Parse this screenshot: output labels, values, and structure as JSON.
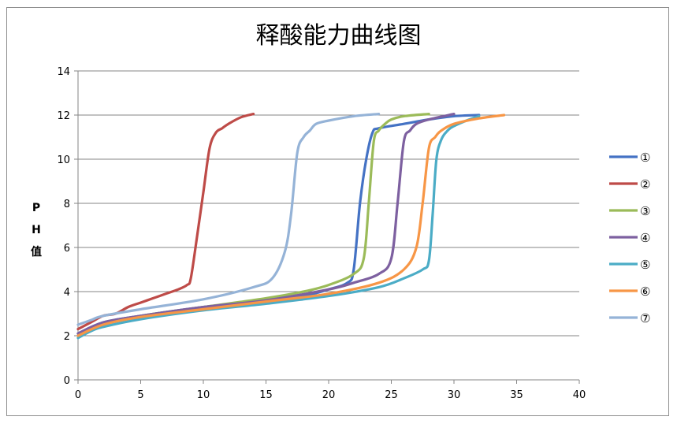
{
  "chart_data": {
    "type": "line",
    "title": "释酸能力曲线图",
    "xlabel": "",
    "ylabel": [
      "P",
      "H",
      "值"
    ],
    "xlim": [
      0,
      40
    ],
    "ylim": [
      0,
      14
    ],
    "xticks": [
      0,
      5,
      10,
      15,
      20,
      25,
      30,
      35,
      40
    ],
    "yticks": [
      0,
      2,
      4,
      6,
      8,
      10,
      12,
      14
    ],
    "grid": "horizontal",
    "legend": "right",
    "series": [
      {
        "name": "①",
        "color": "#4472c4",
        "x": [
          0,
          2,
          5,
          10,
          15,
          18,
          20,
          21.5,
          22,
          22.5,
          23,
          23.5,
          24,
          26,
          28,
          30,
          32
        ],
        "y": [
          2.1,
          2.6,
          2.9,
          3.3,
          3.6,
          3.8,
          4.1,
          4.4,
          5.0,
          8.0,
          10.0,
          11.2,
          11.4,
          11.6,
          11.8,
          11.95,
          12.0
        ]
      },
      {
        "name": "②",
        "color": "#be4b48",
        "x": [
          0,
          1,
          2,
          3,
          4,
          5,
          6,
          7,
          8,
          8.7,
          9,
          9.5,
          10,
          10.5,
          11,
          11.5,
          12,
          13,
          14
        ],
        "y": [
          2.3,
          2.6,
          2.9,
          3.0,
          3.3,
          3.5,
          3.7,
          3.9,
          4.1,
          4.3,
          4.6,
          6.5,
          8.5,
          10.5,
          11.2,
          11.4,
          11.6,
          11.9,
          12.05
        ]
      },
      {
        "name": "③",
        "color": "#9bbb59",
        "x": [
          0,
          2,
          5,
          10,
          15,
          18,
          20,
          22,
          22.8,
          23.2,
          23.6,
          24,
          24.5,
          25,
          26,
          28
        ],
        "y": [
          2.0,
          2.5,
          2.9,
          3.3,
          3.7,
          4.0,
          4.3,
          4.8,
          5.5,
          8.0,
          10.8,
          11.3,
          11.6,
          11.8,
          11.95,
          12.05
        ]
      },
      {
        "name": "④",
        "color": "#7d60a0",
        "x": [
          0,
          2,
          5,
          10,
          15,
          20,
          22,
          24,
          25,
          25.5,
          26,
          26.5,
          27,
          28,
          30
        ],
        "y": [
          2.1,
          2.6,
          2.9,
          3.3,
          3.6,
          4.1,
          4.4,
          4.8,
          5.5,
          8.0,
          10.8,
          11.3,
          11.6,
          11.8,
          12.05
        ]
      },
      {
        "name": "⑤",
        "color": "#4bacc6",
        "x": [
          0,
          1,
          2,
          5,
          10,
          15,
          20,
          24,
          26,
          27.5,
          28,
          28.3,
          28.6,
          29,
          29.5,
          30,
          31,
          32
        ],
        "y": [
          1.9,
          2.2,
          2.4,
          2.75,
          3.15,
          3.45,
          3.8,
          4.2,
          4.6,
          5.0,
          5.4,
          7.5,
          10.0,
          10.9,
          11.3,
          11.5,
          11.75,
          11.95
        ]
      },
      {
        "name": "⑥",
        "color": "#f79646",
        "x": [
          0,
          2,
          5,
          10,
          15,
          20,
          24,
          26,
          27,
          27.5,
          28,
          28.5,
          29,
          30,
          32,
          34
        ],
        "y": [
          2.0,
          2.5,
          2.85,
          3.2,
          3.55,
          3.9,
          4.4,
          5.0,
          6.0,
          8.0,
          10.5,
          11.0,
          11.3,
          11.6,
          11.85,
          12.0
        ]
      },
      {
        "name": "⑦",
        "color": "#95b3d7",
        "x": [
          0,
          1,
          2,
          5,
          10,
          14,
          15.5,
          16.5,
          17,
          17.5,
          18,
          18.5,
          19,
          20,
          22,
          24
        ],
        "y": [
          2.5,
          2.7,
          2.9,
          3.2,
          3.65,
          4.2,
          4.6,
          5.8,
          7.5,
          10.3,
          11.0,
          11.3,
          11.6,
          11.75,
          11.95,
          12.05
        ]
      }
    ]
  }
}
